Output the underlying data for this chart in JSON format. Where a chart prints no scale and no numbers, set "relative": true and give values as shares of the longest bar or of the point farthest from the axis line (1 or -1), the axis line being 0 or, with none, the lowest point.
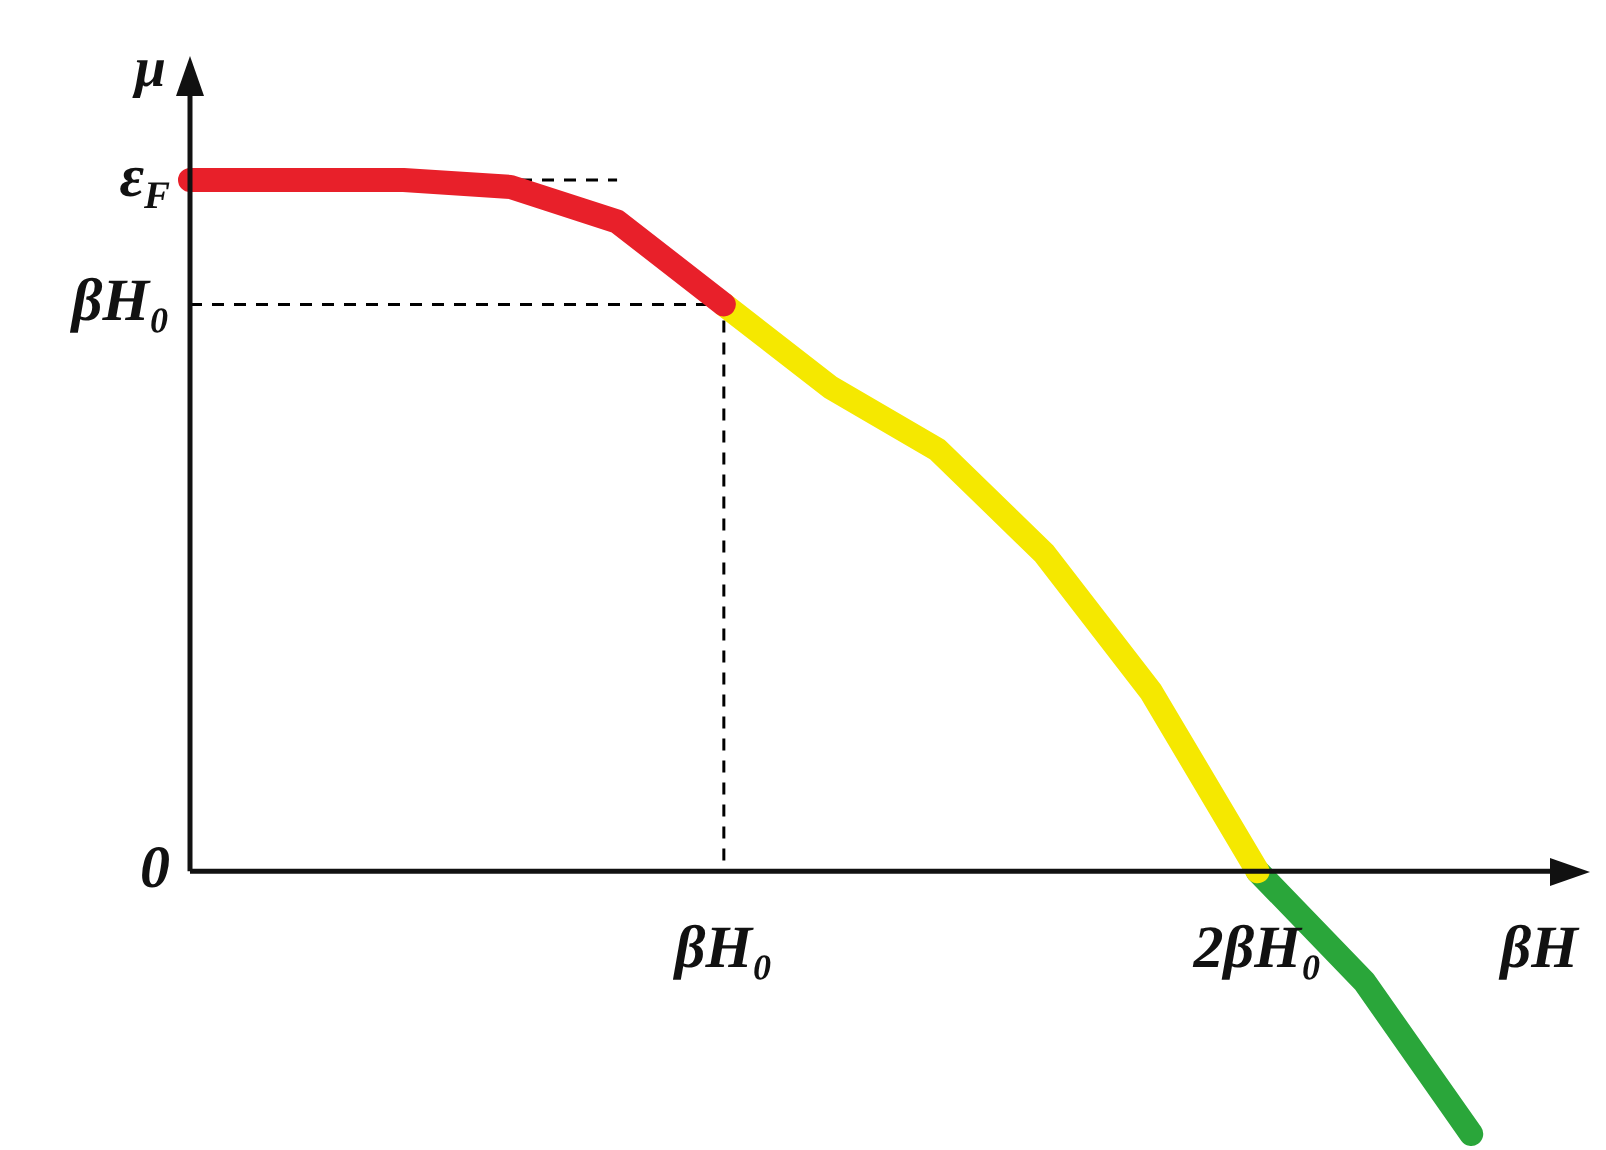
{
  "chart_data": {
    "type": "line",
    "relative": true,
    "xlabel": "βH",
    "ylabel": "μ",
    "categories": [
      null,
      null,
      null,
      null,
      null,
      "βH₀",
      null,
      null,
      null,
      null,
      "2βH₀",
      null,
      null,
      null
    ],
    "annotations": [
      "0"
    ],
    "ref_lines": [
      {
        "axis": "y",
        "value": 1,
        "label": "ε$_{F}$",
        "color": "#000000",
        "line_style": "dashed"
      },
      {
        "axis": "y",
        "value": 0.82,
        "label": "βH₀",
        "color": "#000000",
        "line_style": "dashed"
      }
    ],
    "grid": false,
    "legend": false,
    "marker": "none",
    "series": [
      {
        "color": "#e8202a",
        "line_style": "solid",
        "values": [
          1,
          1,
          1,
          0.99,
          0.94,
          0.82,
          null,
          null,
          null,
          null,
          null,
          null,
          null,
          null
        ]
      },
      {
        "color": "#f5e800",
        "line_style": "solid",
        "values": [
          null,
          null,
          null,
          null,
          null,
          0.82,
          0.7,
          0.61,
          0.46,
          0.26,
          0,
          null,
          null,
          null
        ]
      },
      {
        "color": "#2aa63a",
        "line_style": "solid",
        "values": [
          null,
          null,
          null,
          null,
          null,
          null,
          null,
          null,
          null,
          null,
          0,
          -0.16,
          -0.38,
          null
        ]
      }
    ]
  }
}
